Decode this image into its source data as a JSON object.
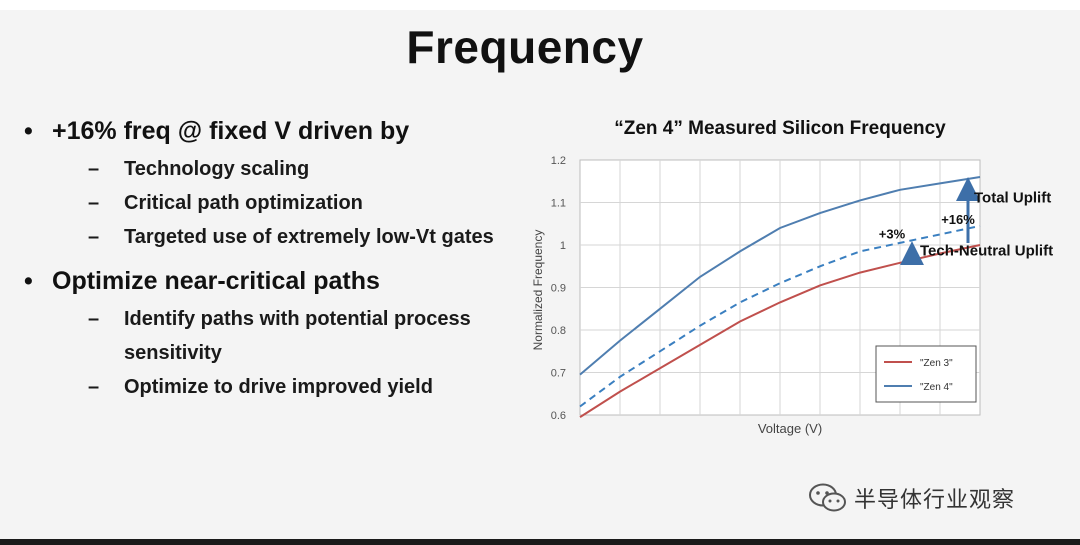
{
  "slide": {
    "title": "Frequency",
    "bullets": [
      {
        "marker": "•",
        "text": "+16% freq @ fixed V driven by",
        "sub": [
          {
            "marker": "–",
            "text": "Technology scaling"
          },
          {
            "marker": "–",
            "text": "Critical path optimization"
          },
          {
            "marker": "–",
            "text": "Targeted use of extremely low-Vt gates"
          }
        ]
      },
      {
        "marker": "•",
        "text": "Optimize near-critical paths",
        "sub": [
          {
            "marker": "–",
            "text": "Identify paths with potential process sensitivity"
          },
          {
            "marker": "–",
            "text": "Optimize to drive improved yield"
          }
        ]
      }
    ]
  },
  "chart_data": {
    "type": "line",
    "title": "“Zen 4” Measured Silicon Frequency",
    "xlabel": "Voltage (V)",
    "ylabel": "Normalized Frequency",
    "ylim": [
      0.6,
      1.2
    ],
    "yticks": [
      "0.6",
      "0.7",
      "0.8",
      "0.9",
      "1",
      "1.1",
      "1.2"
    ],
    "xlim": [
      0,
      10
    ],
    "grid": true,
    "legend_position": "bottom-right",
    "x": [
      0,
      1,
      2,
      3,
      4,
      5,
      6,
      7,
      8,
      9,
      10
    ],
    "series": [
      {
        "name": "\"Zen 3\"",
        "style": "solid",
        "color": "#c0504d",
        "values": [
          0.595,
          0.655,
          0.71,
          0.765,
          0.82,
          0.865,
          0.905,
          0.935,
          0.958,
          0.98,
          1.0
        ]
      },
      {
        "name": "",
        "style": "dashed",
        "color": "#3a7fc0",
        "values": [
          0.62,
          0.69,
          0.75,
          0.81,
          0.865,
          0.91,
          0.95,
          0.985,
          1.005,
          1.025,
          1.045
        ]
      },
      {
        "name": "\"Zen 4\"",
        "style": "solid",
        "color": "#4f7eb0",
        "values": [
          0.695,
          0.775,
          0.85,
          0.925,
          0.985,
          1.04,
          1.075,
          1.105,
          1.13,
          1.145,
          1.16
        ]
      }
    ],
    "annotations": [
      {
        "text": "+3%",
        "x": 8
      },
      {
        "text": "+16%",
        "x": 9.4
      },
      {
        "text": "Total Uplift",
        "x": 10
      },
      {
        "text": "Tech-Neutral Uplift",
        "x": 8.2
      }
    ]
  },
  "watermark": {
    "text": "半导体行业观察",
    "icon": "wechat-icon"
  }
}
